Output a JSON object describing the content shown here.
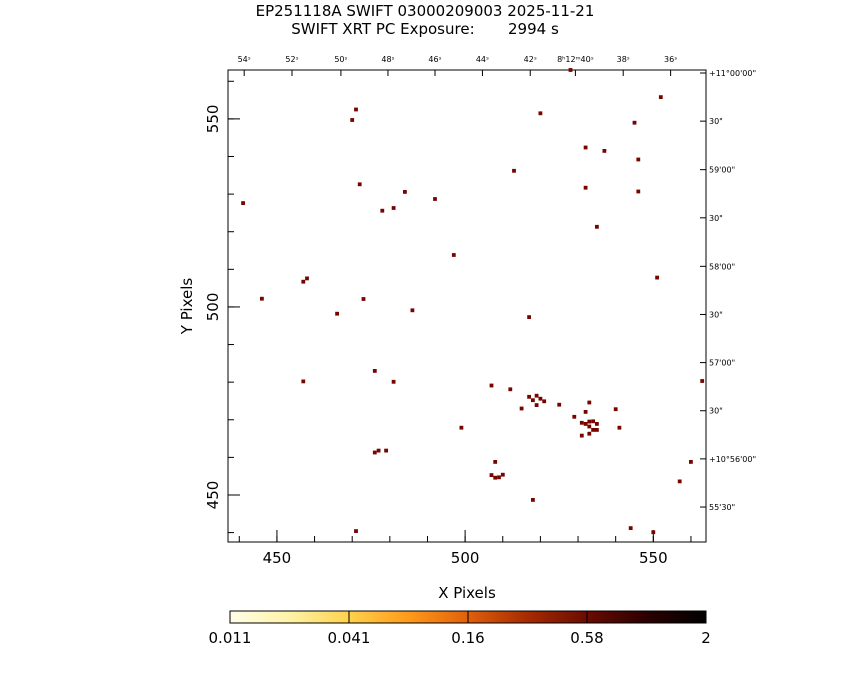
{
  "header": {
    "title": "EP251118A SWIFT 03000209003 2025-11-21",
    "subtitle": "SWIFT XRT PC Exposure:       2994 s"
  },
  "chart_data": {
    "type": "scatter",
    "title": "EP251118A SWIFT 03000209003 2025-11-21",
    "subtitle": "SWIFT XRT PC Exposure:       2994 s",
    "xlabel": "X Pixels",
    "ylabel": "Y Pixels",
    "xlim": [
      437,
      564
    ],
    "ylim": [
      437.5,
      563
    ],
    "xticks": [
      450,
      500,
      550
    ],
    "yticks": [
      450,
      500,
      550
    ],
    "top_ticks": [
      {
        "x": 441.3,
        "label": "54ˢ"
      },
      {
        "x": 454.0,
        "label": "52ˢ"
      },
      {
        "x": 467.0,
        "label": "50ˢ"
      },
      {
        "x": 479.5,
        "label": "48ˢ"
      },
      {
        "x": 492.0,
        "label": "46ˢ"
      },
      {
        "x": 504.6,
        "label": "44ˢ"
      },
      {
        "x": 517.3,
        "label": "42ˢ"
      },
      {
        "x": 529.3,
        "label": "8ʰ12ᵐ40ˢ"
      },
      {
        "x": 542.0,
        "label": "38ˢ"
      },
      {
        "x": 554.6,
        "label": "36ˢ"
      }
    ],
    "right_ticks": [
      {
        "y": 562.2,
        "label": "+11°00'00\""
      },
      {
        "y": 549.4,
        "label": "30\""
      },
      {
        "y": 536.5,
        "label": "59'00\""
      },
      {
        "y": 523.7,
        "label": "30\""
      },
      {
        "y": 510.8,
        "label": "58'00\""
      },
      {
        "y": 498.0,
        "label": "30\""
      },
      {
        "y": 485.2,
        "label": "57'00\""
      },
      {
        "y": 472.4,
        "label": "30\""
      },
      {
        "y": 459.6,
        "label": "+10°56'00\""
      },
      {
        "y": 446.8,
        "label": "55'30\""
      }
    ],
    "colorbar": {
      "tick_labels": [
        "0.011",
        "0.041",
        "0.16",
        "0.58",
        "2"
      ],
      "colors": [
        "#fffde8",
        "#fff3a8",
        "#ffd24d",
        "#ff9a1a",
        "#e0600a",
        "#a62b00",
        "#6a0c00",
        "#2a0000",
        "#000000"
      ]
    },
    "points": [
      [
        528,
        563
      ],
      [
        552,
        555.8
      ],
      [
        471,
        552.5
      ],
      [
        520,
        551.5
      ],
      [
        470,
        549.7
      ],
      [
        545,
        549
      ],
      [
        532,
        542.4
      ],
      [
        537,
        541.5
      ],
      [
        546,
        539.2
      ],
      [
        513,
        536.2
      ],
      [
        472,
        532.6
      ],
      [
        532,
        531.7
      ],
      [
        546,
        530.7
      ],
      [
        484,
        530.6
      ],
      [
        492,
        528.7
      ],
      [
        441,
        527.6
      ],
      [
        481,
        526.3
      ],
      [
        478,
        525.6
      ],
      [
        535,
        521.3
      ],
      [
        497,
        513.8
      ],
      [
        551,
        507.8
      ],
      [
        458,
        507.6
      ],
      [
        457,
        506.7
      ],
      [
        446,
        502.2
      ],
      [
        473,
        502.1
      ],
      [
        486,
        499.1
      ],
      [
        466,
        498.2
      ],
      [
        517,
        497.3
      ],
      [
        476,
        483.0
      ],
      [
        457,
        480.2
      ],
      [
        481,
        480.1
      ],
      [
        563,
        480.3
      ],
      [
        507,
        479.1
      ],
      [
        512,
        478.1
      ],
      [
        517,
        476.1
      ],
      [
        518,
        475.2
      ],
      [
        519,
        476.4
      ],
      [
        520,
        475.6
      ],
      [
        521,
        474.9
      ],
      [
        519,
        473.9
      ],
      [
        515,
        473.0
      ],
      [
        525,
        474.0
      ],
      [
        533,
        474.6
      ],
      [
        540,
        472.8
      ],
      [
        532,
        472.1
      ],
      [
        529,
        470.8
      ],
      [
        531,
        469.2
      ],
      [
        532,
        468.9
      ],
      [
        533,
        469.5
      ],
      [
        533,
        468.2
      ],
      [
        534,
        469.6
      ],
      [
        534,
        467.3
      ],
      [
        535,
        468.9
      ],
      [
        535,
        467.3
      ],
      [
        533,
        466.3
      ],
      [
        531,
        465.8
      ],
      [
        541,
        467.9
      ],
      [
        499,
        467.9
      ],
      [
        476,
        461.3
      ],
      [
        477,
        461.8
      ],
      [
        479,
        461.8
      ],
      [
        508,
        458.8
      ],
      [
        507,
        455.3
      ],
      [
        509,
        454.7
      ],
      [
        510,
        455.4
      ],
      [
        508,
        454.6
      ],
      [
        560,
        458.8
      ],
      [
        557,
        453.6
      ],
      [
        518,
        448.7
      ],
      [
        544,
        441.2
      ],
      [
        471,
        440.4
      ],
      [
        550,
        440.1
      ]
    ]
  }
}
